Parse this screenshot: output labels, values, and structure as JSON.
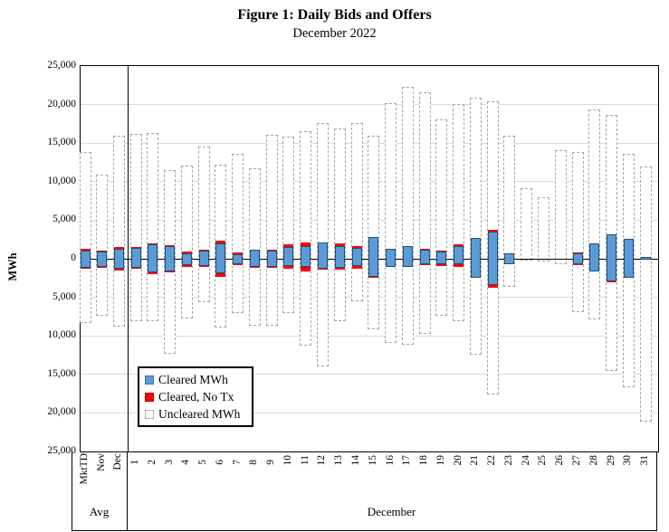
{
  "header": {
    "title": "Figure 1: Daily Bids and Offers",
    "subtitle": "December 2022"
  },
  "legend": {
    "items": [
      {
        "key": "cleared",
        "label": "Cleared MWh"
      },
      {
        "key": "no_tx",
        "label": "Cleared, No Tx"
      },
      {
        "key": "uncleared",
        "label": "Uncleared MWh"
      }
    ]
  },
  "colors": {
    "cleared_fill": "#5b9bd5",
    "cleared_border": "#1f4e79",
    "no_tx_fill": "#ff0000",
    "uncleared_dash": "#a6a6a6",
    "gridline": "#d9d9d9",
    "axis": "#000000"
  },
  "chart_data": {
    "type": "bar",
    "title": "Figure 1: Daily Bids and Offers",
    "subtitle": "December 2022",
    "ylabel": "MWh",
    "ylim": [
      -25000,
      25000
    ],
    "grid": true,
    "legend_position": "inside-lower-left",
    "y_ticks": [
      {
        "value": 25000,
        "label": "25,000"
      },
      {
        "value": 20000,
        "label": "20,000"
      },
      {
        "value": 15000,
        "label": "15,000"
      },
      {
        "value": 10000,
        "label": "10,000"
      },
      {
        "value": 5000,
        "label": "5,000"
      },
      {
        "value": 0,
        "label": "0"
      },
      {
        "value": -5000,
        "label": "5,000"
      },
      {
        "value": -10000,
        "label": "10,000"
      },
      {
        "value": -15000,
        "label": "15,000"
      },
      {
        "value": -20000,
        "label": "20,000"
      },
      {
        "value": -25000,
        "label": "25,000"
      }
    ],
    "x_groups": [
      {
        "label": "Avg",
        "span": [
          "MktTD",
          "Dec"
        ]
      },
      {
        "label": "December",
        "span": [
          "1",
          "31"
        ]
      }
    ],
    "series_note": "u = uncleared MWh range [low, high]; c = cleared MWh range [low, high]; n = cleared-no-Tx outer extents [low, high] (red caps beyond cleared bar tips)",
    "categories": [
      {
        "label": "MktTD",
        "group": "Avg",
        "u": [
          -8300,
          13800
        ],
        "c": [
          -1200,
          1100
        ],
        "n": [
          -1350,
          1300
        ]
      },
      {
        "label": "Nov",
        "group": "Avg",
        "u": [
          -7400,
          10900
        ],
        "c": [
          -1100,
          950
        ],
        "n": [
          -1200,
          1050
        ]
      },
      {
        "label": "Dec",
        "group": "Avg",
        "u": [
          -8800,
          16000
        ],
        "c": [
          -1350,
          1300
        ],
        "n": [
          -1500,
          1500
        ]
      },
      {
        "label": "1",
        "group": "December",
        "u": [
          -8100,
          16200
        ],
        "c": [
          -1200,
          1450
        ],
        "n": [
          -1300,
          1500
        ]
      },
      {
        "label": "2",
        "group": "December",
        "u": [
          -8100,
          16350
        ],
        "c": [
          -1750,
          1900
        ],
        "n": [
          -1950,
          1950
        ]
      },
      {
        "label": "3",
        "group": "December",
        "u": [
          -12300,
          11500
        ],
        "c": [
          -1650,
          1650
        ],
        "n": [
          -1800,
          1750
        ]
      },
      {
        "label": "4",
        "group": "December",
        "u": [
          -7700,
          12100
        ],
        "c": [
          -850,
          700
        ],
        "n": [
          -1000,
          900
        ]
      },
      {
        "label": "5",
        "group": "December",
        "u": [
          -5600,
          14600
        ],
        "c": [
          -950,
          1100
        ],
        "n": [
          -1000,
          1150
        ]
      },
      {
        "label": "6",
        "group": "December",
        "u": [
          -8900,
          12250
        ],
        "c": [
          -1900,
          1950
        ],
        "n": [
          -2300,
          2350
        ]
      },
      {
        "label": "7",
        "group": "December",
        "u": [
          -7000,
          13600
        ],
        "c": [
          -700,
          600
        ],
        "n": [
          -800,
          800
        ]
      },
      {
        "label": "8",
        "group": "December",
        "u": [
          -8700,
          11700
        ],
        "c": [
          -1100,
          1150
        ],
        "n": [
          -1200,
          1200
        ]
      },
      {
        "label": "9",
        "group": "December",
        "u": [
          -8700,
          16100
        ],
        "c": [
          -1000,
          1100
        ],
        "n": [
          -1150,
          1150
        ]
      },
      {
        "label": "10",
        "group": "December",
        "u": [
          -7000,
          15800
        ],
        "c": [
          -900,
          1500
        ],
        "n": [
          -1250,
          1850
        ]
      },
      {
        "label": "11",
        "group": "December",
        "u": [
          -11300,
          16600
        ],
        "c": [
          -1050,
          1700
        ],
        "n": [
          -1650,
          2150
        ]
      },
      {
        "label": "12",
        "group": "December",
        "u": [
          -14000,
          17550
        ],
        "c": [
          -1250,
          2100
        ],
        "n": [
          -1450,
          2150
        ]
      },
      {
        "label": "13",
        "group": "December",
        "u": [
          -8100,
          16900
        ],
        "c": [
          -1150,
          1600
        ],
        "n": [
          -1450,
          2000
        ]
      },
      {
        "label": "14",
        "group": "December",
        "u": [
          -5500,
          17550
        ],
        "c": [
          -950,
          1400
        ],
        "n": [
          -1250,
          1700
        ]
      },
      {
        "label": "15",
        "group": "December",
        "u": [
          -9100,
          16000
        ],
        "c": [
          -2400,
          2850
        ],
        "n": [
          -2450,
          2850
        ]
      },
      {
        "label": "16",
        "group": "December",
        "u": [
          -10900,
          20200
        ],
        "c": [
          -1050,
          1300
        ],
        "n": [
          -1050,
          1300
        ]
      },
      {
        "label": "17",
        "group": "December",
        "u": [
          -11100,
          22300
        ],
        "c": [
          -1000,
          1600
        ],
        "n": [
          -1050,
          1600
        ]
      },
      {
        "label": "18",
        "group": "December",
        "u": [
          -9700,
          21650
        ],
        "c": [
          -750,
          1200
        ],
        "n": [
          -800,
          1250
        ]
      },
      {
        "label": "19",
        "group": "December",
        "u": [
          -7350,
          18100
        ],
        "c": [
          -650,
          950
        ],
        "n": [
          -950,
          1100
        ]
      },
      {
        "label": "20",
        "group": "December",
        "u": [
          -8100,
          20100
        ],
        "c": [
          -750,
          1600
        ],
        "n": [
          -1050,
          1850
        ]
      },
      {
        "label": "21",
        "group": "December",
        "u": [
          -12500,
          20900
        ],
        "c": [
          -2450,
          2700
        ],
        "n": [
          -2500,
          2750
        ]
      },
      {
        "label": "22",
        "group": "December",
        "u": [
          -17600,
          20450
        ],
        "c": [
          -3400,
          3550
        ],
        "n": [
          -3700,
          3750
        ]
      },
      {
        "label": "23",
        "group": "December",
        "u": [
          -3600,
          15950
        ],
        "c": [
          -650,
          650
        ],
        "n": [
          -700,
          700
        ]
      },
      {
        "label": "24",
        "group": "December",
        "u": [
          -200,
          9200
        ],
        "c": [
          0,
          0
        ],
        "n": [
          0,
          0
        ]
      },
      {
        "label": "25",
        "group": "December",
        "u": [
          -300,
          8000
        ],
        "c": [
          0,
          0
        ],
        "n": [
          0,
          0
        ]
      },
      {
        "label": "26",
        "group": "December",
        "u": [
          -700,
          14100
        ],
        "c": [
          0,
          0
        ],
        "n": [
          0,
          0
        ]
      },
      {
        "label": "27",
        "group": "December",
        "u": [
          -6900,
          13900
        ],
        "c": [
          -750,
          750
        ],
        "n": [
          -800,
          800
        ]
      },
      {
        "label": "28",
        "group": "December",
        "u": [
          -7900,
          19400
        ],
        "c": [
          -1650,
          2000
        ],
        "n": [
          -1700,
          2000
        ]
      },
      {
        "label": "29",
        "group": "December",
        "u": [
          -14500,
          18700
        ],
        "c": [
          -2950,
          3150
        ],
        "n": [
          -3000,
          3150
        ]
      },
      {
        "label": "30",
        "group": "December",
        "u": [
          -16650,
          13600
        ],
        "c": [
          -2450,
          2550
        ],
        "n": [
          -2500,
          2550
        ]
      },
      {
        "label": "31",
        "group": "December",
        "u": [
          -21100,
          11950
        ],
        "c": [
          -150,
          250
        ],
        "n": [
          -150,
          250
        ]
      }
    ]
  }
}
